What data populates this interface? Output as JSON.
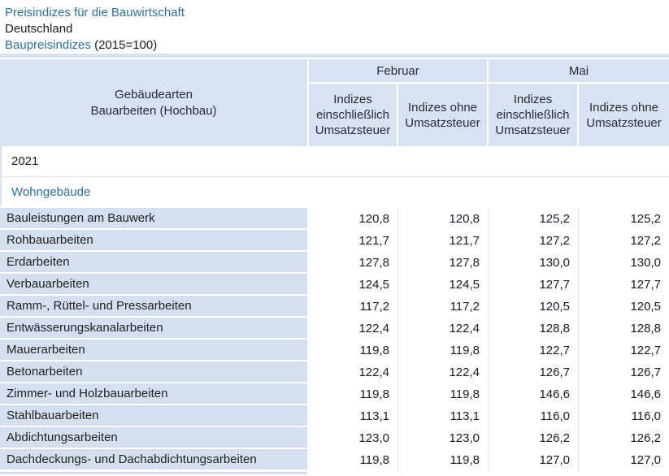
{
  "header": {
    "title": "Preisindizes für die Bauwirtschaft",
    "subtitle": "Deutschland",
    "index_label": "Baupreisindizes",
    "index_base": "(2015=100)"
  },
  "table": {
    "corner_line1": "Gebäudearten",
    "corner_line2": "Bauarbeiten (Hochbau)",
    "month_groups": [
      {
        "label": "Februar"
      },
      {
        "label": "Mai"
      }
    ],
    "sub_headers": [
      "Indizes einschließlich Umsatzsteuer",
      "Indizes ohne Umsatzsteuer",
      "Indizes einschließlich Umsatzsteuer",
      "Indizes ohne Umsatzsteuer"
    ],
    "year_section": "2021",
    "group_section": "Wohngebäude",
    "rows": [
      {
        "label": "Bauleistungen am Bauwerk",
        "link": true,
        "values": [
          "120,8",
          "120,8",
          "125,2",
          "125,2"
        ]
      },
      {
        "label": "Rohbauarbeiten",
        "link": true,
        "values": [
          "121,7",
          "121,7",
          "127,2",
          "127,2"
        ]
      },
      {
        "label": "Erdarbeiten",
        "link": false,
        "values": [
          "127,8",
          "127,8",
          "130,0",
          "130,0"
        ]
      },
      {
        "label": "Verbauarbeiten",
        "link": false,
        "values": [
          "124,5",
          "124,5",
          "127,7",
          "127,7"
        ]
      },
      {
        "label": "Ramm-, Rüttel- und Pressarbeiten",
        "link": false,
        "values": [
          "117,2",
          "117,2",
          "120,5",
          "120,5"
        ]
      },
      {
        "label": "Entwässerungskanalarbeiten",
        "link": false,
        "values": [
          "122,4",
          "122,4",
          "128,8",
          "128,8"
        ]
      },
      {
        "label": "Mauerarbeiten",
        "link": false,
        "values": [
          "119,8",
          "119,8",
          "122,7",
          "122,7"
        ]
      },
      {
        "label": "Betonarbeiten",
        "link": false,
        "values": [
          "122,4",
          "122,4",
          "126,7",
          "126,7"
        ]
      },
      {
        "label": "Zimmer- und Holzbauarbeiten",
        "link": false,
        "values": [
          "119,8",
          "119,8",
          "146,6",
          "146,6"
        ]
      },
      {
        "label": "Stahlbauarbeiten",
        "link": false,
        "values": [
          "113,1",
          "113,1",
          "116,0",
          "116,0"
        ]
      },
      {
        "label": "Abdichtungsarbeiten",
        "link": false,
        "values": [
          "123,0",
          "123,0",
          "126,2",
          "126,2"
        ]
      },
      {
        "label": "Dachdeckungs- und Dachabdichtungsarbeiten",
        "link": false,
        "values": [
          "119,8",
          "119,8",
          "127,0",
          "127,0"
        ]
      }
    ]
  },
  "colors": {
    "link_blue": "#2f6f9f",
    "header_bg": "#d9e2f2",
    "row_label_bg": "#d5dff0",
    "separator": "#dee4f1",
    "dark_text": "#1c1c1c"
  }
}
